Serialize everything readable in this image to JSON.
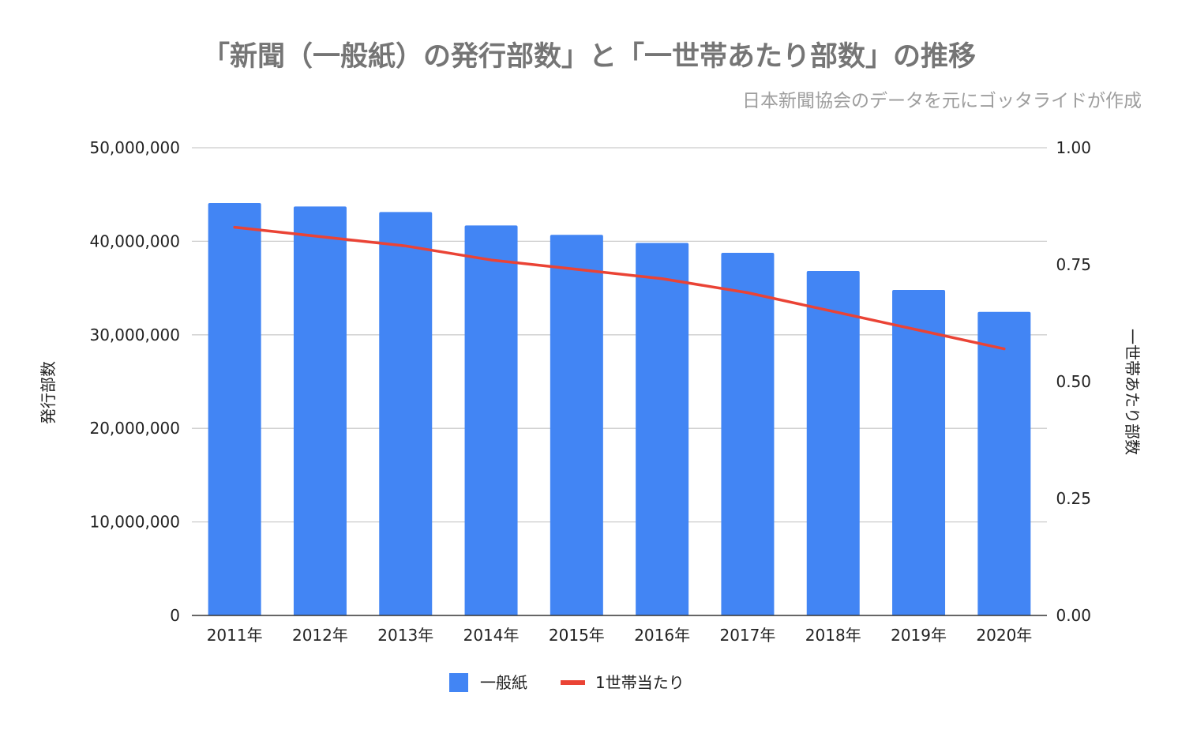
{
  "chart_data": {
    "type": "bar",
    "title": "「新聞（一般紙）の発行部数」と「一世帯あたり部数」の推移",
    "subtitle": "日本新聞協会のデータを元にゴッタライドが作成",
    "categories": [
      "2011年",
      "2012年",
      "2013年",
      "2014年",
      "2015年",
      "2016年",
      "2017年",
      "2018年",
      "2019年",
      "2020年"
    ],
    "series": [
      {
        "name": "一般紙",
        "type": "bar",
        "axis": "left",
        "color": "#4285f4",
        "values": [
          44092000,
          43723000,
          43126000,
          41687000,
          40691000,
          39821000,
          38763000,
          36823000,
          34801000,
          32452000
        ]
      },
      {
        "name": "1世帯当たり",
        "type": "line",
        "axis": "right",
        "color": "#ea4335",
        "values": [
          0.83,
          0.81,
          0.79,
          0.76,
          0.74,
          0.72,
          0.69,
          0.65,
          0.61,
          0.57
        ]
      }
    ],
    "ylabel": "発行部数",
    "ylabel_right": "一世帯あたり部数",
    "ylim": [
      0,
      50000000
    ],
    "ylim_right": [
      0,
      1
    ],
    "yticks": [
      "0",
      "10,000,000",
      "20,000,000",
      "30,000,000",
      "40,000,000",
      "50,000,000"
    ],
    "yticks_right": [
      "0.00",
      "0.25",
      "0.50",
      "0.75",
      "1.00"
    ],
    "grid": true,
    "legend_position": "bottom"
  }
}
